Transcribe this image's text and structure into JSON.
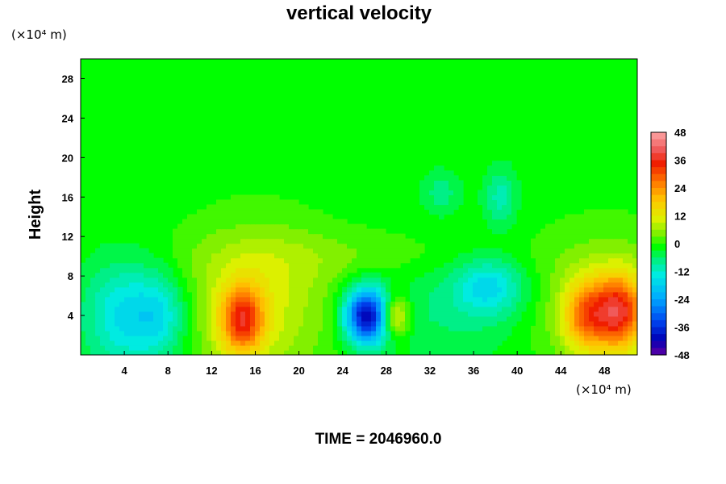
{
  "chart_data": {
    "type": "heatmap",
    "title": "vertical velocity",
    "xlabel": "",
    "ylabel": "Height",
    "x_units": "(×10⁴ m)",
    "y_units": "(×10⁴ m)",
    "x_ticks": [
      4,
      8,
      12,
      16,
      20,
      24,
      28,
      32,
      36,
      40,
      44,
      48
    ],
    "y_ticks": [
      4,
      8,
      12,
      16,
      20,
      24,
      28
    ],
    "xlim": [
      0,
      51
    ],
    "ylim": [
      0,
      30
    ],
    "colorbar": {
      "min": -48,
      "max": 48,
      "step": 3,
      "tick_labels": [
        48,
        36,
        24,
        12,
        0,
        -12,
        -24,
        -36,
        -48
      ]
    },
    "background_value": 0,
    "features": [
      {
        "x": 4.0,
        "y": 4.0,
        "value": -14,
        "sx": 2.6,
        "sy": 3.8
      },
      {
        "x": 7.5,
        "y": 4.0,
        "value": -11,
        "sx": 1.8,
        "sy": 3.0
      },
      {
        "x": 14.8,
        "y": 3.6,
        "value": 27,
        "sx": 1.4,
        "sy": 2.4
      },
      {
        "x": 16.0,
        "y": 5.0,
        "value": 12,
        "sx": 4.8,
        "sy": 5.5
      },
      {
        "x": 26.2,
        "y": 4.0,
        "value": -40,
        "sx": 1.4,
        "sy": 2.0
      },
      {
        "x": 28.8,
        "y": 4.0,
        "value": 18,
        "sx": 0.9,
        "sy": 1.5
      },
      {
        "x": 37.5,
        "y": 7.0,
        "value": -13,
        "sx": 2.2,
        "sy": 2.0
      },
      {
        "x": 34.0,
        "y": 5.0,
        "value": -5,
        "sx": 5.0,
        "sy": 4.0
      },
      {
        "x": 46.2,
        "y": 4.0,
        "value": 20,
        "sx": 1.4,
        "sy": 2.4
      },
      {
        "x": 49.3,
        "y": 4.4,
        "value": 30,
        "sx": 1.6,
        "sy": 2.6
      },
      {
        "x": 48.0,
        "y": 5.0,
        "value": 10,
        "sx": 4.5,
        "sy": 5.0
      },
      {
        "x": 33.0,
        "y": 16.5,
        "value": -6,
        "sx": 1.2,
        "sy": 1.5
      },
      {
        "x": 38.5,
        "y": 16.0,
        "value": -9,
        "sx": 1.0,
        "sy": 2.0
      },
      {
        "x": 25.0,
        "y": 10.0,
        "value": 4,
        "sx": 10.0,
        "sy": 2.0
      }
    ]
  },
  "footer": {
    "time_label": "TIME = 2046960.0"
  }
}
